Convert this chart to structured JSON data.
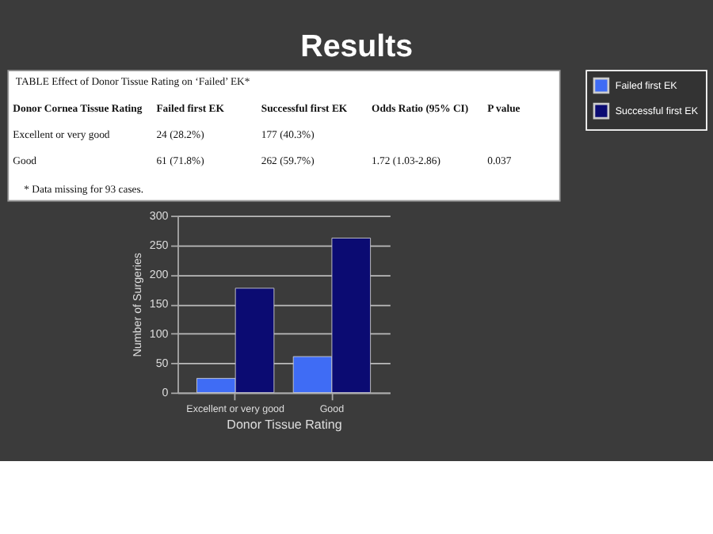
{
  "chart_data": {
    "type": "bar",
    "title": "Results",
    "annotations": [
      "TABLE Effect of Donor Tissue Rating on ‘Failed’ EK*",
      "Donor Cornea Tissue Rating",
      "Failed first EK",
      "Successful first EK",
      "Odds Ratio (95% CI)",
      "P value",
      "Excellent or very good",
      "24 (28.2%)",
      "177 (40.3%)",
      "Good",
      "61 (71.8%)",
      "262 (59.7%)",
      "1.72 (1.03-2.86)",
      "0.037",
      "* Data missing for 93 cases."
    ],
    "categories": [
      "Excellent or very good",
      "Good"
    ],
    "series": [
      {
        "name": "Failed first EK",
        "color": "#3f6cf5",
        "values": [
          24,
          61
        ]
      },
      {
        "name": "Successful first EK",
        "color": "#0b0b72",
        "values": [
          177,
          262
        ]
      }
    ],
    "xlabel": "Donor Tissue Rating",
    "ylabel": "Number of Surgeries",
    "ylim": [
      0,
      300
    ],
    "yticks": [
      0,
      50,
      100,
      150,
      200,
      250,
      300
    ],
    "grid": "y",
    "legend": "right"
  }
}
